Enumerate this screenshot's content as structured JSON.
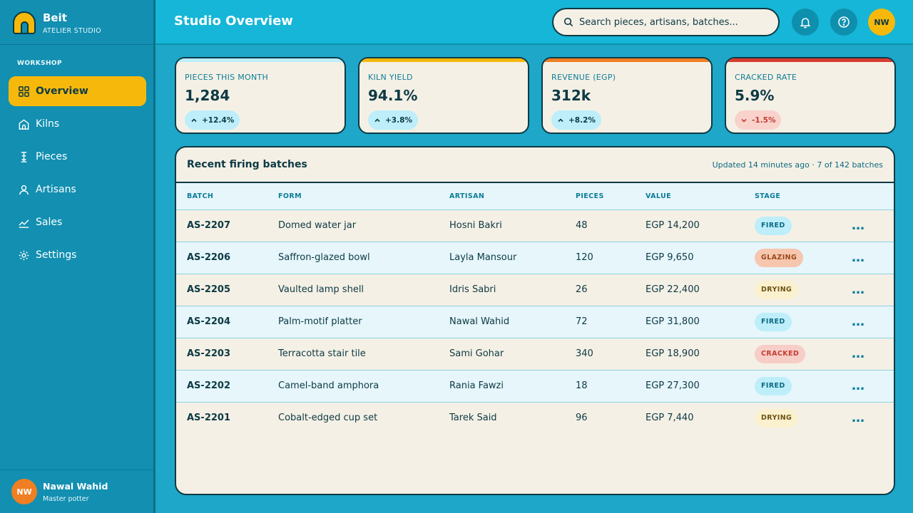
{
  "brand": {
    "name": "Beit",
    "subtitle": "ATELIER STUDIO"
  },
  "sidebar": {
    "section": "WORKSHOP",
    "items": [
      {
        "label": "Overview",
        "icon": "grid-icon",
        "active": true
      },
      {
        "label": "Kilns",
        "icon": "kiln-icon",
        "active": false
      },
      {
        "label": "Pieces",
        "icon": "pottery-icon",
        "active": false
      },
      {
        "label": "Artisans",
        "icon": "user-icon",
        "active": false
      },
      {
        "label": "Sales",
        "icon": "chart-line-icon",
        "active": false
      },
      {
        "label": "Settings",
        "icon": "gear-icon",
        "active": false
      }
    ],
    "user": {
      "initials": "NW",
      "name": "Nawal Wahid",
      "role": "Master potter"
    }
  },
  "header": {
    "title": "Studio Overview",
    "search_placeholder": "Search pieces, artisans, batches...",
    "avatar_initials": "NW"
  },
  "kpis": [
    {
      "label": "PIECES THIS MONTH",
      "value": "1,284",
      "delta": "+12.4%",
      "direction": "up",
      "accent": "#bdeefa"
    },
    {
      "label": "KILN YIELD",
      "value": "94.1%",
      "delta": "+3.8%",
      "direction": "up",
      "accent": "#f6b90b"
    },
    {
      "label": "REVENUE (EGP)",
      "value": "312k",
      "delta": "+8.2%",
      "direction": "up",
      "accent": "#ef7f22"
    },
    {
      "label": "CRACKED RATE",
      "value": "5.9%",
      "delta": "-1.5%",
      "direction": "down",
      "accent": "#d63b2f"
    }
  ],
  "batches": {
    "title": "Recent firing batches",
    "meta": "Updated 14 minutes ago · 7 of 142 batches",
    "columns": [
      "BATCH",
      "FORM",
      "ARTISAN",
      "PIECES",
      "VALUE",
      "STAGE"
    ],
    "rows": [
      {
        "batch": "AS-2207",
        "form": "Domed water jar",
        "artisan": "Hosni Bakri",
        "pieces": "48",
        "value": "EGP 14,200",
        "stage": "FIRED"
      },
      {
        "batch": "AS-2206",
        "form": "Saffron-glazed bowl",
        "artisan": "Layla Mansour",
        "pieces": "120",
        "value": "EGP 9,650",
        "stage": "GLAZING"
      },
      {
        "batch": "AS-2205",
        "form": "Vaulted lamp shell",
        "artisan": "Idris Sabri",
        "pieces": "26",
        "value": "EGP 22,400",
        "stage": "DRYING"
      },
      {
        "batch": "AS-2204",
        "form": "Palm-motif platter",
        "artisan": "Nawal Wahid",
        "pieces": "72",
        "value": "EGP 31,800",
        "stage": "FIRED"
      },
      {
        "batch": "AS-2203",
        "form": "Terracotta stair tile",
        "artisan": "Sami Gohar",
        "pieces": "340",
        "value": "EGP 18,900",
        "stage": "CRACKED"
      },
      {
        "batch": "AS-2202",
        "form": "Camel-band amphora",
        "artisan": "Rania Fawzi",
        "pieces": "18",
        "value": "EGP 27,300",
        "stage": "FIRED"
      },
      {
        "batch": "AS-2201",
        "form": "Cobalt-edged cup set",
        "artisan": "Tarek Said",
        "pieces": "96",
        "value": "EGP 7,440",
        "stage": "DRYING"
      }
    ]
  }
}
